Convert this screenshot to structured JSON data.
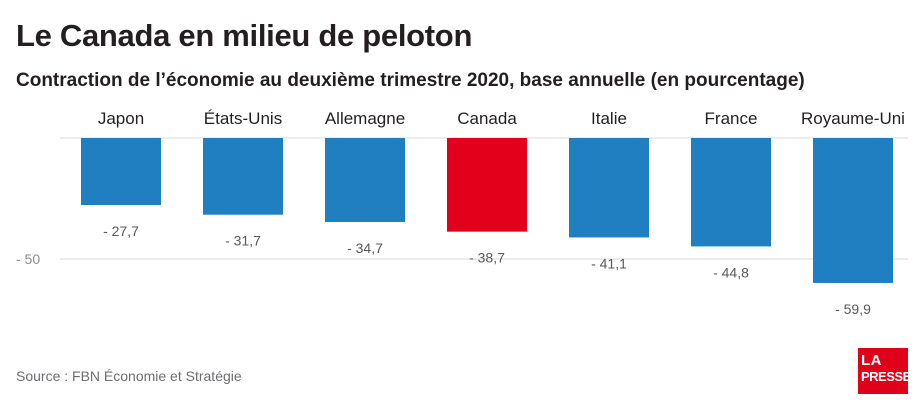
{
  "title": "Le Canada en milieu de peloton",
  "subtitle": "Contraction de l’économie au deuxième trimestre 2020, base annuelle (en pourcentage)",
  "source": "Source : FBN Économie et Stratégie",
  "logo": {
    "line1": "LA",
    "line2": "PRESSE"
  },
  "colors": {
    "bar": "#1f7fc1",
    "highlight": "#e2001a",
    "text": "#231f20",
    "muted": "#6d6e71",
    "grid": "#d9d9d9"
  },
  "chart_data": {
    "type": "bar",
    "categories": [
      "Japon",
      "États-Unis",
      "Allemagne",
      "Canada",
      "Italie",
      "France",
      "Royaume-Uni"
    ],
    "values": [
      -27.7,
      -31.7,
      -34.7,
      -38.7,
      -41.1,
      -44.8,
      -59.9
    ],
    "value_labels": [
      "- 27,7",
      "- 31,7",
      "- 34,7",
      "- 38,7",
      "- 41,1",
      "- 44,8",
      "- 59,9"
    ],
    "highlight": "Canada",
    "y_ticks": [
      {
        "value": -50,
        "label": "- 50"
      }
    ],
    "ylim": [
      -60,
      0
    ],
    "grid": true,
    "legend": "none"
  }
}
